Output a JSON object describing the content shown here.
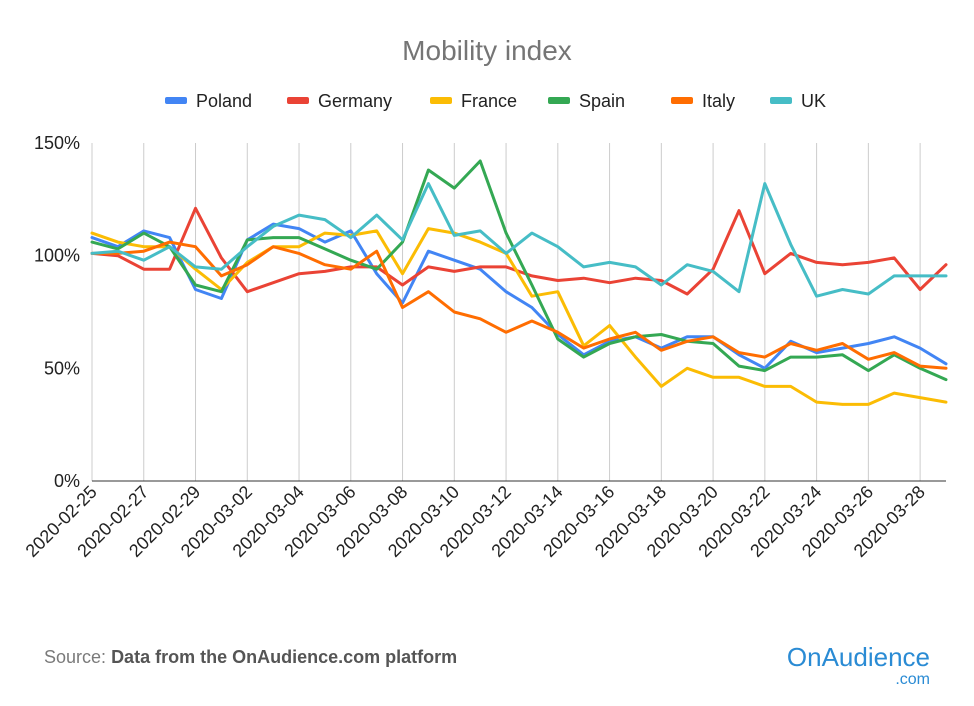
{
  "chart_data": {
    "type": "line",
    "title": "Mobility index",
    "legend_position": "top",
    "grid": "vertical",
    "ylim": [
      0,
      150
    ],
    "y_ticks": [
      "0%",
      "50%",
      "100%",
      "150%"
    ],
    "y_tick_values": [
      0,
      50,
      100,
      150
    ],
    "x_tick_labels": [
      "2020-02-25",
      "2020-02-27",
      "2020-02-29",
      "2020-03-02",
      "2020-03-04",
      "2020-03-06",
      "2020-03-08",
      "2020-03-10",
      "2020-03-12",
      "2020-03-14",
      "2020-03-16",
      "2020-03-18",
      "2020-03-20",
      "2020-03-22",
      "2020-03-24",
      "2020-03-26",
      "2020-03-28"
    ],
    "x": [
      "2020-02-25",
      "2020-02-26",
      "2020-02-27",
      "2020-02-28",
      "2020-02-29",
      "2020-03-01",
      "2020-03-02",
      "2020-03-03",
      "2020-03-04",
      "2020-03-05",
      "2020-03-06",
      "2020-03-07",
      "2020-03-08",
      "2020-03-09",
      "2020-03-10",
      "2020-03-11",
      "2020-03-12",
      "2020-03-13",
      "2020-03-14",
      "2020-03-15",
      "2020-03-16",
      "2020-03-17",
      "2020-03-18",
      "2020-03-19",
      "2020-03-20",
      "2020-03-21",
      "2020-03-22",
      "2020-03-23",
      "2020-03-24",
      "2020-03-25",
      "2020-03-26",
      "2020-03-27",
      "2020-03-28",
      "2020-03-29"
    ],
    "series": [
      {
        "name": "Poland",
        "color": "#4285f4",
        "values": [
          108,
          104,
          111,
          108,
          85,
          81,
          107,
          114,
          112,
          106,
          111,
          92,
          79,
          102,
          98,
          94,
          84,
          77,
          65,
          56,
          62,
          64,
          59,
          64,
          64,
          56,
          50,
          62,
          57,
          59,
          61,
          64,
          59,
          52
        ]
      },
      {
        "name": "Germany",
        "color": "#ea4335",
        "values": [
          101,
          100,
          94,
          94,
          121,
          99,
          84,
          88,
          92,
          93,
          95,
          95,
          87,
          95,
          93,
          95,
          95,
          91,
          89,
          90,
          88,
          90,
          89,
          83,
          94,
          120,
          92,
          101,
          97,
          96,
          97,
          99,
          85,
          96
        ]
      },
      {
        "name": "France",
        "color": "#fbbc04",
        "values": [
          110,
          106,
          104,
          104,
          94,
          85,
          97,
          104,
          104,
          110,
          109,
          111,
          92,
          112,
          110,
          106,
          101,
          82,
          84,
          60,
          69,
          55,
          42,
          50,
          46,
          46,
          42,
          42,
          35,
          34,
          34,
          39,
          37,
          35
        ]
      },
      {
        "name": "Spain",
        "color": "#34a853",
        "values": [
          106,
          103,
          110,
          104,
          87,
          84,
          107,
          108,
          108,
          103,
          98,
          94,
          106,
          138,
          130,
          142,
          110,
          87,
          63,
          55,
          61,
          64,
          65,
          62,
          61,
          51,
          49,
          55,
          55,
          56,
          49,
          56,
          50,
          45
        ]
      },
      {
        "name": "Italy",
        "color": "#ff6d01",
        "values": [
          101,
          101,
          102,
          106,
          104,
          91,
          96,
          104,
          101,
          96,
          94,
          102,
          77,
          84,
          75,
          72,
          66,
          71,
          66,
          59,
          63,
          66,
          58,
          62,
          64,
          57,
          55,
          61,
          58,
          61,
          54,
          57,
          51,
          50
        ]
      },
      {
        "name": "UK",
        "color": "#46bdc6",
        "values": [
          101,
          102,
          98,
          104,
          95,
          94,
          104,
          113,
          118,
          116,
          108,
          118,
          107,
          132,
          109,
          111,
          101,
          110,
          104,
          95,
          97,
          95,
          87,
          96,
          93,
          84,
          132,
          105,
          82,
          85,
          83,
          91,
          91,
          91
        ]
      }
    ]
  },
  "footer": {
    "source_label": "Source:",
    "source_text": "Data from the OnAudience.com platform",
    "brand_name": "OnAudience",
    "brand_domain": ".com"
  }
}
